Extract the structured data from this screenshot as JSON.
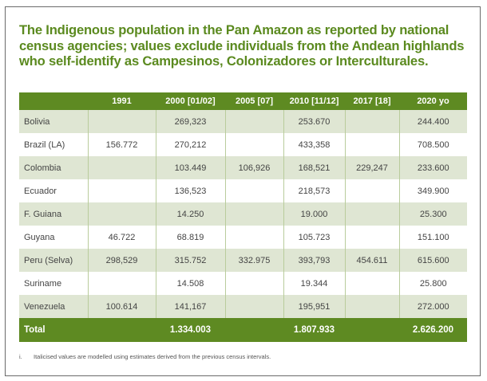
{
  "title": "The Indigenous population in the Pan Amazon as reported by national census agencies; values exclude individuals from the Andean highlands who self-identify as Campesinos, Colonizadores or Interculturales.",
  "table": {
    "headers": [
      "",
      "1991",
      "2000 [01/02]",
      "2005 [07]",
      "2010 [11/12]",
      "2017 [18]",
      "2020 yo"
    ],
    "rows": [
      [
        "Bolivia",
        "",
        "269,323",
        "",
        "253.670",
        "",
        "244.400"
      ],
      [
        "Brazil (LA)",
        "156.772",
        "270,212",
        "",
        "433,358",
        "",
        "708.500"
      ],
      [
        "Colombia",
        "",
        "103.449",
        "106,926",
        "168,521",
        "229,247",
        "233.600"
      ],
      [
        "Ecuador",
        "",
        "136,523",
        "",
        "218,573",
        "",
        "349.900"
      ],
      [
        "F. Guiana",
        "",
        "14.250",
        "",
        "19.000",
        "",
        "25.300"
      ],
      [
        "Guyana",
        "46.722",
        "68.819",
        "",
        "105.723",
        "",
        "151.100"
      ],
      [
        "Peru (Selva)",
        "298,529",
        "315.752",
        "332.975",
        "393,793",
        "454.611",
        "615.600"
      ],
      [
        "Suriname",
        "",
        "14.508",
        "",
        "19.344",
        "",
        "25.800"
      ],
      [
        "Venezuela",
        "100.614",
        "141,167",
        "",
        "195,951",
        "",
        "272.000"
      ]
    ],
    "total": [
      "Total",
      "",
      "1.334.003",
      "",
      "1.807.933",
      "",
      "2.626.200"
    ]
  },
  "footnote": {
    "marker": "i.",
    "text": "Italicised values are modelled using estimates derived from the previous census intervals."
  },
  "colors": {
    "accent": "#5e8a22",
    "title": "#5b8a1f",
    "row_alt": "#dfe6d3"
  }
}
